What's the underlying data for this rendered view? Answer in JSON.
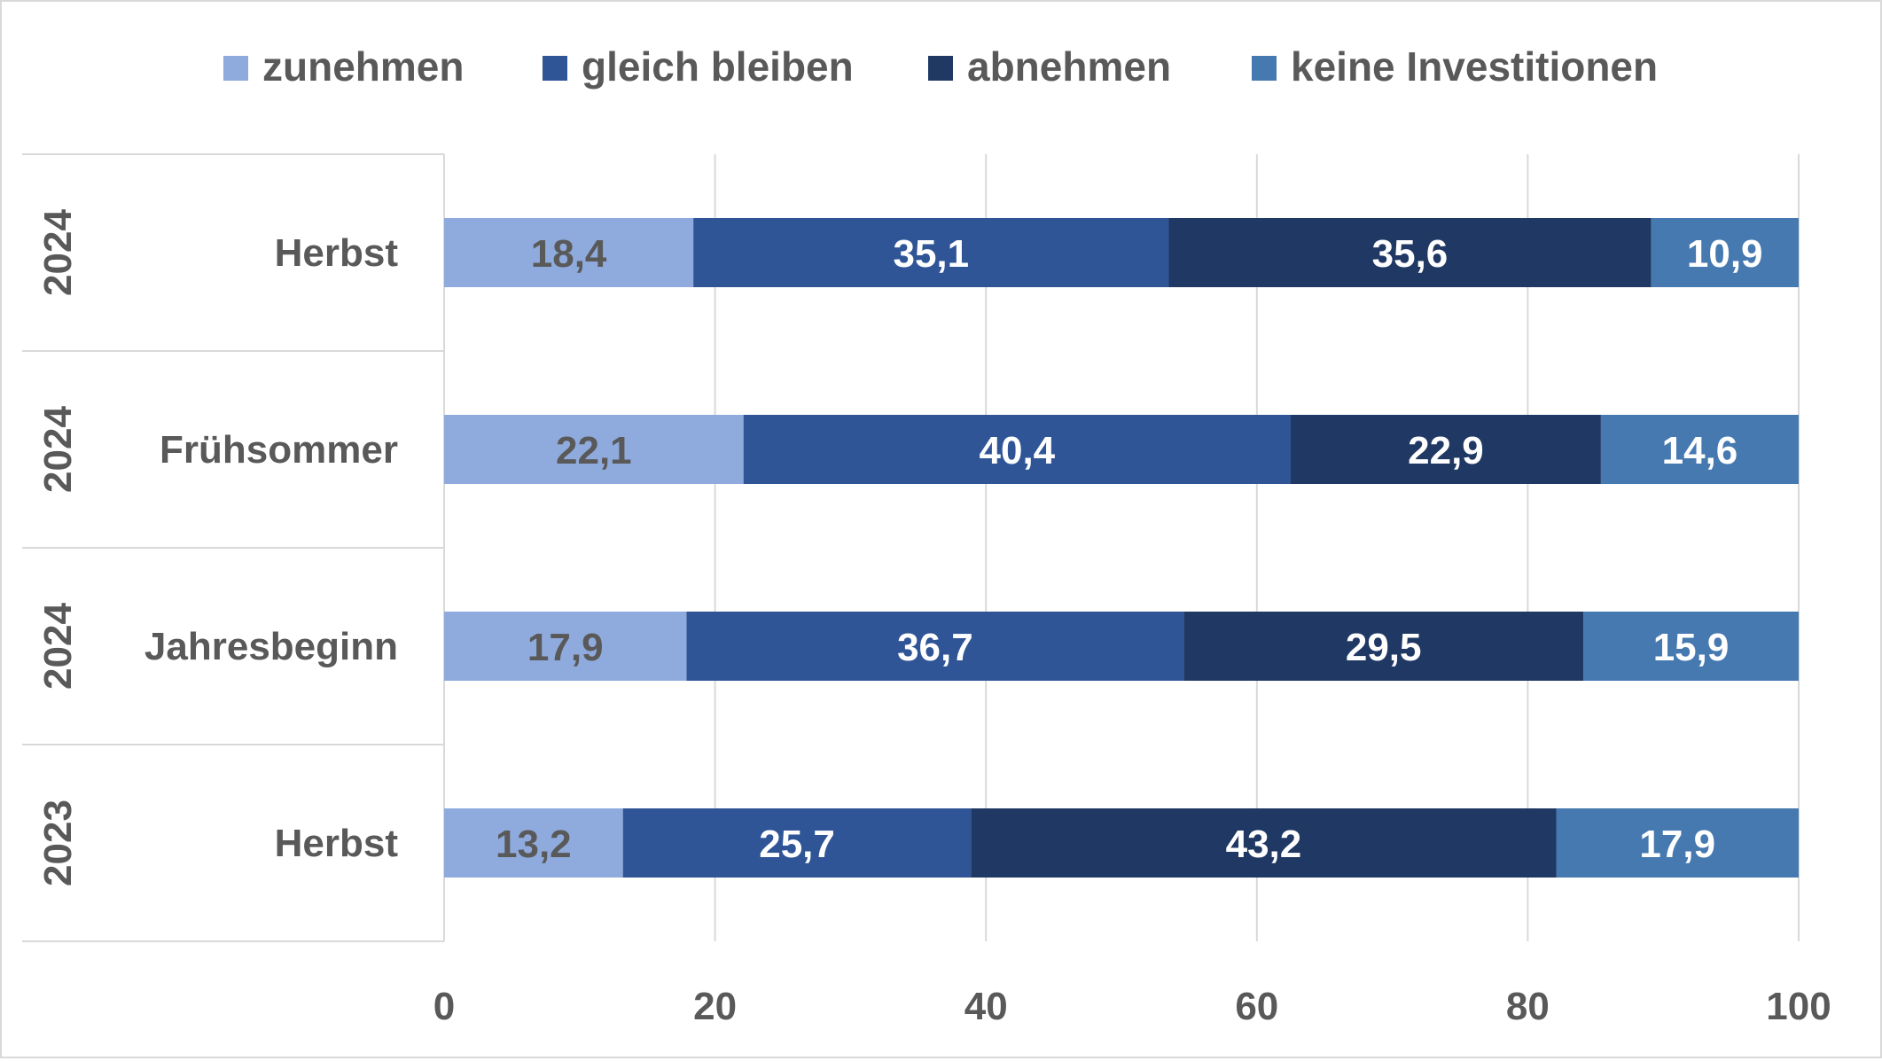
{
  "chart_data": {
    "type": "bar",
    "orientation": "horizontal",
    "stacked": true,
    "title": "",
    "xlabel": "",
    "ylabel": "",
    "xlim": [
      0,
      100
    ],
    "x_ticks": [
      "0",
      "20",
      "40",
      "60",
      "80",
      "100"
    ],
    "grid": true,
    "legend_position": "top",
    "categories": [
      {
        "year": "2024",
        "season": "Herbst"
      },
      {
        "year": "2024",
        "season": "Frühsommer"
      },
      {
        "year": "2024",
        "season": "Jahresbeginn"
      },
      {
        "year": "2023",
        "season": "Herbst"
      }
    ],
    "series": [
      {
        "name": "zunehmen",
        "color": "#8faadc",
        "label_color": "#595959",
        "values": [
          18.4,
          22.1,
          17.9,
          13.2
        ],
        "labels": [
          "18,4",
          "22,1",
          "17,9",
          "13,2"
        ]
      },
      {
        "name": "gleich bleiben",
        "color": "#2f5597",
        "label_color": "#ffffff",
        "values": [
          35.1,
          40.4,
          36.7,
          25.7
        ],
        "labels": [
          "35,1",
          "40,4",
          "36,7",
          "25,7"
        ]
      },
      {
        "name": "abnehmen",
        "color": "#203864",
        "label_color": "#ffffff",
        "values": [
          35.6,
          22.9,
          29.5,
          43.2
        ],
        "labels": [
          "35,6",
          "22,9",
          "29,5",
          "43,2"
        ]
      },
      {
        "name": "keine Investitionen",
        "color": "#4679b0",
        "label_color": "#ffffff",
        "values": [
          10.9,
          14.6,
          15.9,
          17.9
        ],
        "labels": [
          "10,9",
          "14,6",
          "15,9",
          "17,9"
        ]
      }
    ]
  },
  "colors": {
    "axis_text": "#595959",
    "gridline": "#d9d9d9",
    "background": "#ffffff"
  }
}
